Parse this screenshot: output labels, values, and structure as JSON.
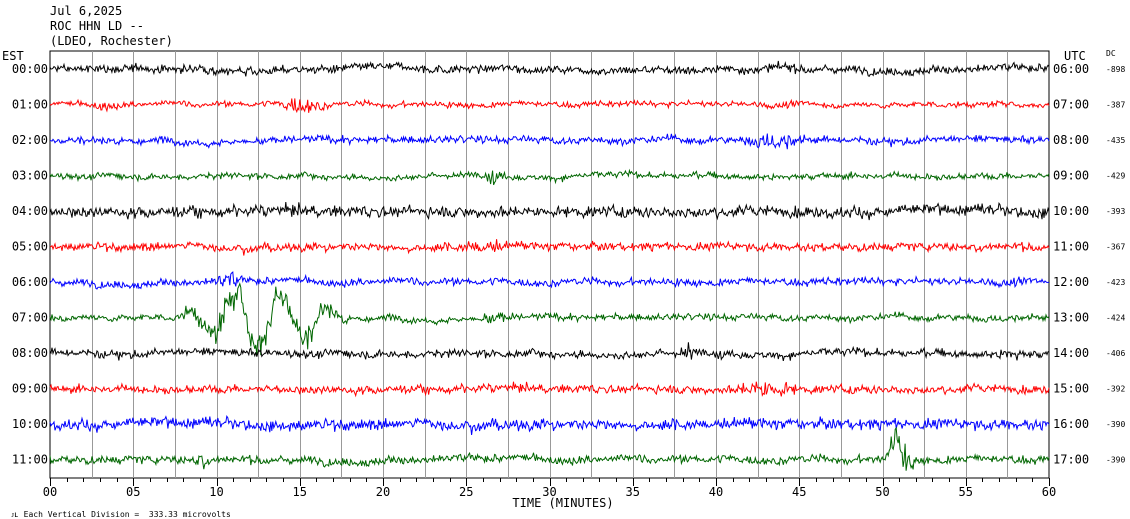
{
  "header": {
    "date": "Jul 6,2025",
    "station": "ROC HHN LD --",
    "network": "(LDEO, Rochester)"
  },
  "labels": {
    "left_zone": "EST",
    "right_zone": "UTC",
    "dc": "DC",
    "scale_note": "Each Vertical Division =  333.33 microvolts"
  },
  "chart_data": {
    "type": "line",
    "title": "",
    "xlabel": "TIME (MINUTES)",
    "ylabel": "",
    "xlim": [
      0,
      60
    ],
    "x_ticks": [
      "00",
      "05",
      "10",
      "15",
      "20",
      "25",
      "30",
      "35",
      "40",
      "45",
      "50",
      "55",
      "60"
    ],
    "grid": "vertical lines every 2.5 minutes",
    "row_height_divisions": 1,
    "colors_cycle": [
      "#000000",
      "#ff0000",
      "#0000ff",
      "#006600"
    ],
    "rows": [
      {
        "est": "00:00",
        "utc": "06:00",
        "dc": "-898",
        "color": "#000000",
        "amplitude": 0.22,
        "events": []
      },
      {
        "est": "01:00",
        "utc": "07:00",
        "dc": "-387",
        "color": "#ff0000",
        "amplitude": 0.15,
        "events": [
          {
            "start": 13.5,
            "end": 16.7,
            "amp": 0.55
          },
          {
            "start": 2.5,
            "end": 4.0,
            "amp": 0.25
          }
        ]
      },
      {
        "est": "02:00",
        "utc": "08:00",
        "dc": "-435",
        "color": "#0000ff",
        "amplitude": 0.2,
        "events": [
          {
            "start": 41.5,
            "end": 45.5,
            "amp": 0.45
          }
        ]
      },
      {
        "est": "03:00",
        "utc": "09:00",
        "dc": "-429",
        "color": "#006600",
        "amplitude": 0.17,
        "events": [
          {
            "start": 25.8,
            "end": 27.5,
            "amp": 0.35
          }
        ]
      },
      {
        "est": "04:00",
        "utc": "10:00",
        "dc": "-393",
        "color": "#000000",
        "amplitude": 0.3,
        "events": []
      },
      {
        "est": "05:00",
        "utc": "11:00",
        "dc": "-367",
        "color": "#ff0000",
        "amplitude": 0.22,
        "events": [
          {
            "start": 24.5,
            "end": 27.5,
            "amp": 0.35
          }
        ]
      },
      {
        "est": "06:00",
        "utc": "12:00",
        "dc": "-423",
        "color": "#0000ff",
        "amplitude": 0.2,
        "events": [
          {
            "start": 9.8,
            "end": 11.5,
            "amp": 0.6
          }
        ]
      },
      {
        "est": "07:00",
        "utc": "13:00",
        "dc": "-424",
        "color": "#006600",
        "amplitude": 0.18,
        "events": [
          {
            "start": 7.5,
            "end": 18.0,
            "amp": 1.2
          },
          {
            "start": 25.5,
            "end": 28.0,
            "amp": 0.3
          }
        ]
      },
      {
        "est": "08:00",
        "utc": "14:00",
        "dc": "-406",
        "color": "#000000",
        "amplitude": 0.22,
        "events": [
          {
            "start": 57.0,
            "end": 58.5,
            "amp": 0.4
          },
          {
            "start": 37.8,
            "end": 38.8,
            "amp": 0.6
          }
        ]
      },
      {
        "est": "09:00",
        "utc": "15:00",
        "dc": "-392",
        "color": "#ff0000",
        "amplitude": 0.22,
        "events": [
          {
            "start": 41.0,
            "end": 45.0,
            "amp": 0.55
          }
        ]
      },
      {
        "est": "10:00",
        "utc": "16:00",
        "dc": "-390",
        "color": "#0000ff",
        "amplitude": 0.3,
        "events": []
      },
      {
        "est": "11:00",
        "utc": "17:00",
        "dc": "-390",
        "color": "#006600",
        "amplitude": 0.22,
        "events": [
          {
            "start": 50.0,
            "end": 52.0,
            "amp": 1.0
          },
          {
            "start": 8.5,
            "end": 9.5,
            "amp": 0.5
          }
        ]
      }
    ]
  }
}
